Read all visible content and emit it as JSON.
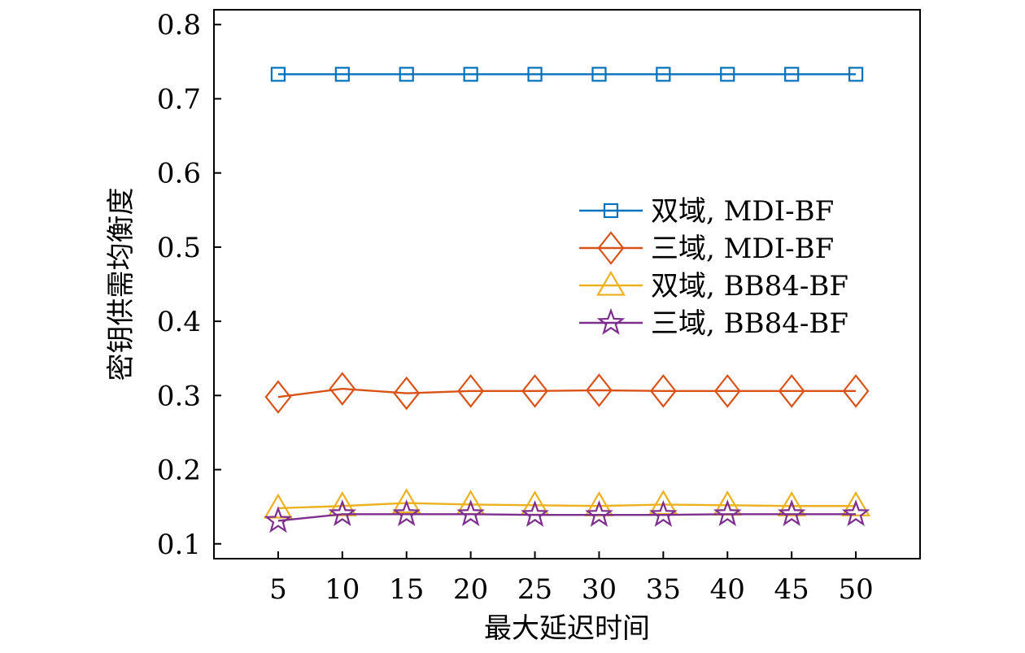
{
  "chart_data": {
    "type": "line",
    "title": "",
    "xlabel": "最大延迟时间",
    "ylabel": "密钥供需均衡度",
    "x": [
      5,
      10,
      15,
      20,
      25,
      30,
      35,
      40,
      45,
      50
    ],
    "xticks": [
      "5",
      "10",
      "15",
      "20",
      "25",
      "30",
      "35",
      "40",
      "45",
      "50"
    ],
    "ylim": [
      0.08,
      0.82
    ],
    "yticks": [
      "0.1",
      "0.2",
      "0.3",
      "0.4",
      "0.5",
      "0.6",
      "0.7",
      "0.8"
    ],
    "ytick_values": [
      0.1,
      0.2,
      0.3,
      0.4,
      0.5,
      0.6,
      0.7,
      0.8
    ],
    "legend_position": "center-right",
    "series": [
      {
        "name": "双域, MDI-BF",
        "color": "#0072BD",
        "marker": "square",
        "values": [
          0.733,
          0.733,
          0.733,
          0.733,
          0.733,
          0.733,
          0.733,
          0.733,
          0.733,
          0.733
        ]
      },
      {
        "name": "三域, MDI-BF",
        "color": "#D95319",
        "marker": "diamond",
        "values": [
          0.298,
          0.309,
          0.303,
          0.306,
          0.306,
          0.307,
          0.306,
          0.306,
          0.306,
          0.306
        ]
      },
      {
        "name": "双域, BB84-BF",
        "color": "#EDB120",
        "marker": "triangle",
        "values": [
          0.148,
          0.151,
          0.155,
          0.153,
          0.152,
          0.151,
          0.153,
          0.152,
          0.151,
          0.151
        ]
      },
      {
        "name": "三域, BB84-BF",
        "color": "#7E2F8E",
        "marker": "star",
        "values": [
          0.131,
          0.14,
          0.14,
          0.14,
          0.139,
          0.139,
          0.139,
          0.14,
          0.14,
          0.14
        ]
      }
    ]
  }
}
